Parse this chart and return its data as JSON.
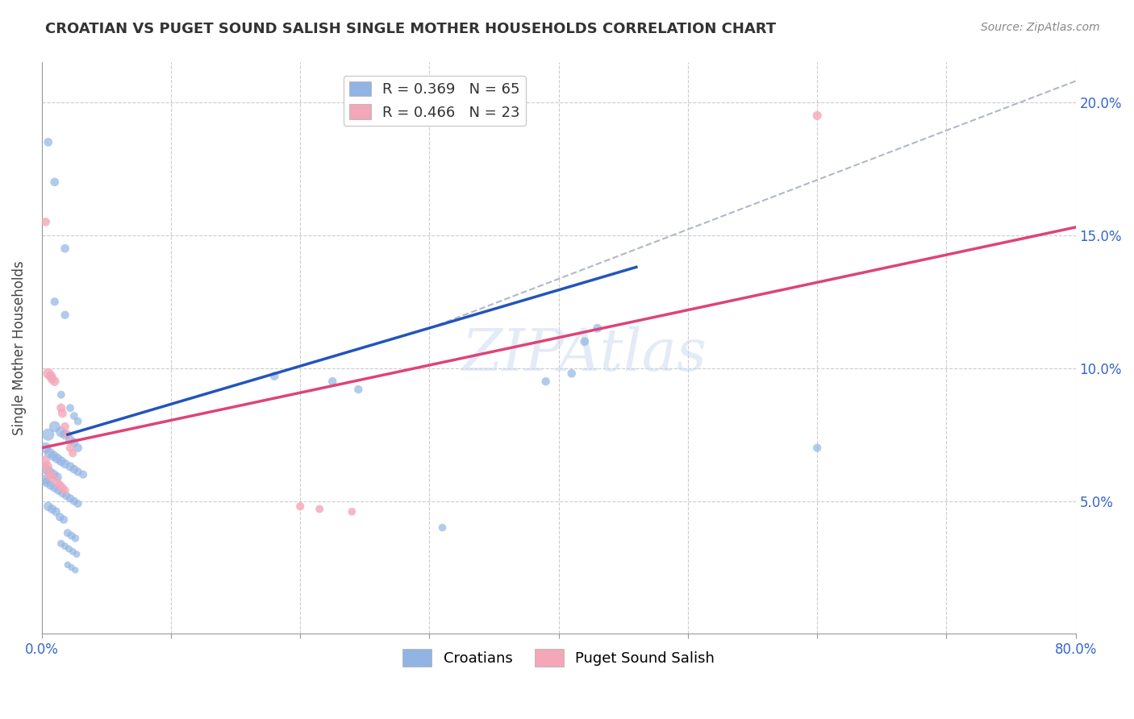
{
  "title": "CROATIAN VS PUGET SOUND SALISH SINGLE MOTHER HOUSEHOLDS CORRELATION CHART",
  "source": "Source: ZipAtlas.com",
  "ylabel": "Single Mother Households",
  "xlim": [
    0.0,
    0.8
  ],
  "ylim": [
    0.0,
    0.215
  ],
  "xticks": [
    0.0,
    0.1,
    0.2,
    0.3,
    0.4,
    0.5,
    0.6,
    0.7,
    0.8
  ],
  "xticklabels": [
    "0.0%",
    "",
    "",
    "",
    "",
    "",
    "",
    "",
    "80.0%"
  ],
  "ytick_positions": [
    0.05,
    0.1,
    0.15,
    0.2
  ],
  "yticklabels": [
    "5.0%",
    "10.0%",
    "15.0%",
    "20.0%"
  ],
  "legend_r1": "R = 0.369",
  "legend_n1": "N = 65",
  "legend_r2": "R = 0.466",
  "legend_n2": "N = 23",
  "blue_color": "#92b4e3",
  "pink_color": "#f4a7b9",
  "blue_line_color": "#2255bb",
  "pink_line_color": "#dd4477",
  "dashed_line_color": "#b0b8c8",
  "watermark": "ZIPAtlas",
  "blue_dots": [
    [
      0.005,
      0.185
    ],
    [
      0.01,
      0.17
    ],
    [
      0.018,
      0.145
    ],
    [
      0.01,
      0.125
    ],
    [
      0.018,
      0.12
    ],
    [
      0.015,
      0.09
    ],
    [
      0.022,
      0.085
    ],
    [
      0.025,
      0.082
    ],
    [
      0.028,
      0.08
    ],
    [
      0.005,
      0.075
    ],
    [
      0.01,
      0.078
    ],
    [
      0.015,
      0.076
    ],
    [
      0.018,
      0.075
    ],
    [
      0.022,
      0.073
    ],
    [
      0.025,
      0.072
    ],
    [
      0.028,
      0.07
    ],
    [
      0.003,
      0.07
    ],
    [
      0.006,
      0.068
    ],
    [
      0.009,
      0.067
    ],
    [
      0.012,
      0.066
    ],
    [
      0.015,
      0.065
    ],
    [
      0.018,
      0.064
    ],
    [
      0.022,
      0.063
    ],
    [
      0.025,
      0.062
    ],
    [
      0.028,
      0.061
    ],
    [
      0.032,
      0.06
    ],
    [
      0.003,
      0.062
    ],
    [
      0.006,
      0.061
    ],
    [
      0.009,
      0.06
    ],
    [
      0.012,
      0.059
    ],
    [
      0.002,
      0.058
    ],
    [
      0.004,
      0.057
    ],
    [
      0.007,
      0.056
    ],
    [
      0.01,
      0.055
    ],
    [
      0.013,
      0.054
    ],
    [
      0.016,
      0.053
    ],
    [
      0.019,
      0.052
    ],
    [
      0.022,
      0.051
    ],
    [
      0.025,
      0.05
    ],
    [
      0.028,
      0.049
    ],
    [
      0.005,
      0.048
    ],
    [
      0.008,
      0.047
    ],
    [
      0.011,
      0.046
    ],
    [
      0.014,
      0.044
    ],
    [
      0.017,
      0.043
    ],
    [
      0.02,
      0.038
    ],
    [
      0.023,
      0.037
    ],
    [
      0.026,
      0.036
    ],
    [
      0.015,
      0.034
    ],
    [
      0.018,
      0.033
    ],
    [
      0.021,
      0.032
    ],
    [
      0.024,
      0.031
    ],
    [
      0.027,
      0.03
    ],
    [
      0.02,
      0.026
    ],
    [
      0.023,
      0.025
    ],
    [
      0.026,
      0.024
    ],
    [
      0.18,
      0.097
    ],
    [
      0.225,
      0.095
    ],
    [
      0.245,
      0.092
    ],
    [
      0.31,
      0.04
    ],
    [
      0.39,
      0.095
    ],
    [
      0.41,
      0.098
    ],
    [
      0.42,
      0.11
    ],
    [
      0.43,
      0.115
    ],
    [
      0.6,
      0.07
    ]
  ],
  "pink_dots": [
    [
      0.003,
      0.155
    ],
    [
      0.005,
      0.098
    ],
    [
      0.007,
      0.097
    ],
    [
      0.008,
      0.096
    ],
    [
      0.01,
      0.095
    ],
    [
      0.015,
      0.085
    ],
    [
      0.016,
      0.083
    ],
    [
      0.018,
      0.078
    ],
    [
      0.02,
      0.075
    ],
    [
      0.022,
      0.07
    ],
    [
      0.024,
      0.068
    ],
    [
      0.002,
      0.065
    ],
    [
      0.004,
      0.063
    ],
    [
      0.006,
      0.06
    ],
    [
      0.008,
      0.059
    ],
    [
      0.012,
      0.057
    ],
    [
      0.014,
      0.056
    ],
    [
      0.016,
      0.055
    ],
    [
      0.018,
      0.054
    ],
    [
      0.2,
      0.048
    ],
    [
      0.215,
      0.047
    ],
    [
      0.24,
      0.046
    ],
    [
      0.6,
      0.195
    ]
  ],
  "blue_sizes": [
    60,
    60,
    60,
    55,
    55,
    50,
    50,
    50,
    50,
    120,
    100,
    90,
    80,
    70,
    65,
    60,
    100,
    90,
    85,
    80,
    75,
    70,
    65,
    60,
    58,
    55,
    85,
    80,
    75,
    70,
    80,
    75,
    70,
    65,
    62,
    60,
    58,
    56,
    54,
    52,
    70,
    65,
    62,
    58,
    55,
    52,
    50,
    48,
    45,
    43,
    42,
    40,
    40,
    38,
    37,
    36,
    60,
    58,
    56,
    48,
    56,
    58,
    60,
    62,
    55
  ],
  "pink_sizes": [
    60,
    90,
    80,
    75,
    70,
    65,
    62,
    60,
    58,
    56,
    54,
    100,
    90,
    80,
    75,
    65,
    60,
    58,
    55,
    55,
    52,
    50,
    65
  ]
}
